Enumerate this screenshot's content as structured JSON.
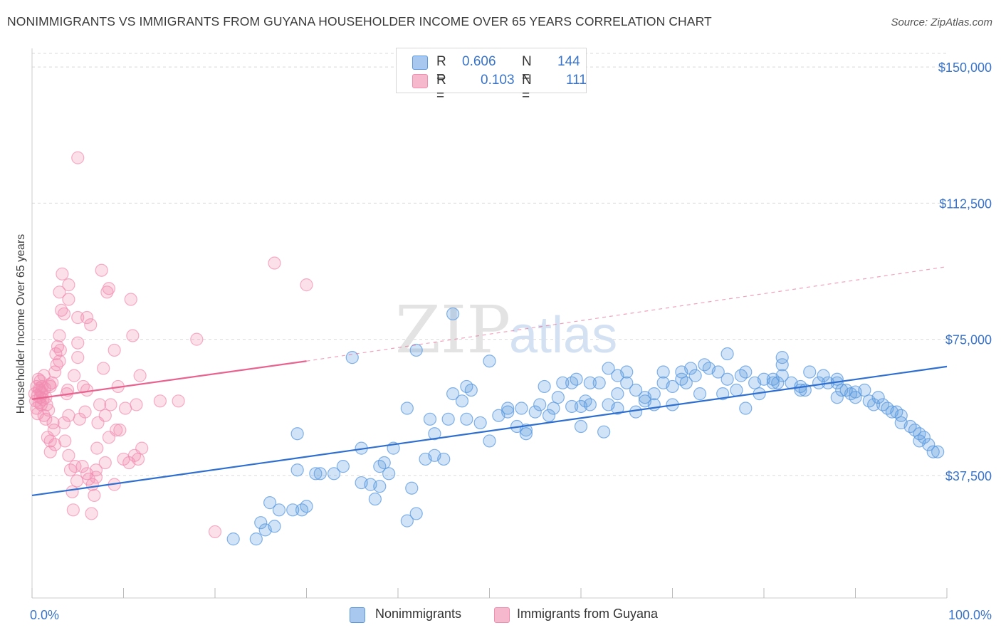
{
  "title": "NONIMMIGRANTS VS IMMIGRANTS FROM GUYANA HOUSEHOLDER INCOME OVER 65 YEARS CORRELATION CHART",
  "source": "Source: ZipAtlas.com",
  "watermark": {
    "zip": "ZIP",
    "atlas": "atlas"
  },
  "legend": {
    "row1": {
      "r_label": "R =",
      "r_value": "0.606",
      "n_label": "N =",
      "n_value": "144",
      "color": "#a9c8ef"
    },
    "row2": {
      "r_label": "R =",
      "r_value": "0.103",
      "n_label": "N =",
      "n_value": "111",
      "color": "#f5b8cc"
    }
  },
  "bottom_legend": {
    "item1": "Nonimmigrants",
    "item2": "Immigrants from Guyana"
  },
  "chart_data": {
    "type": "scatter",
    "title": "NONIMMIGRANTS VS IMMIGRANTS FROM GUYANA HOUSEHOLDER INCOME OVER 65 YEARS CORRELATION CHART",
    "xlabel": "",
    "ylabel": "Householder Income Over 65 years",
    "xlim": [
      0,
      100
    ],
    "ylim": [
      3750,
      153750
    ],
    "x_tick_labels": [
      "0.0%",
      "100.0%"
    ],
    "y_ticks": [
      37500,
      75000,
      112500,
      150000
    ],
    "y_tick_labels": [
      "$37,500",
      "$75,000",
      "$112,500",
      "$150,000"
    ],
    "grid": true,
    "series": [
      {
        "name": "Nonimmigrants",
        "color": "#5b9ae0",
        "trend": {
          "x": [
            0,
            100
          ],
          "y": [
            32000,
            67500
          ],
          "style": "solid",
          "color": "#2f6fd0"
        },
        "points": [
          [
            22,
            20000
          ],
          [
            24.5,
            20000
          ],
          [
            25.5,
            22500
          ],
          [
            26.5,
            23500
          ],
          [
            25,
            24500
          ],
          [
            26,
            30000
          ],
          [
            27,
            28000
          ],
          [
            28.5,
            28000
          ],
          [
            29,
            39000
          ],
          [
            29.5,
            28000
          ],
          [
            30,
            29000
          ],
          [
            29,
            49000
          ],
          [
            31,
            38000
          ],
          [
            31.5,
            38000
          ],
          [
            33,
            38000
          ],
          [
            34,
            40000
          ],
          [
            35,
            70000
          ],
          [
            36,
            45000
          ],
          [
            36,
            35500
          ],
          [
            37,
            35000
          ],
          [
            37.5,
            31000
          ],
          [
            38,
            34500
          ],
          [
            38,
            40000
          ],
          [
            38.5,
            41000
          ],
          [
            39,
            38000
          ],
          [
            39.5,
            45000
          ],
          [
            41,
            25000
          ],
          [
            41,
            56000
          ],
          [
            41.5,
            34000
          ],
          [
            42,
            27000
          ],
          [
            42,
            72000
          ],
          [
            43,
            42000
          ],
          [
            43.5,
            53000
          ],
          [
            44,
            49000
          ],
          [
            44,
            43000
          ],
          [
            45,
            42000
          ],
          [
            45.5,
            53000
          ],
          [
            46,
            60000
          ],
          [
            47,
            58000
          ],
          [
            47.5,
            62000
          ],
          [
            47.5,
            53000
          ],
          [
            48,
            61000
          ],
          [
            49,
            52000
          ],
          [
            50,
            69000
          ],
          [
            50,
            47000
          ],
          [
            51,
            54000
          ],
          [
            52,
            55000
          ],
          [
            52,
            56000
          ],
          [
            53,
            51000
          ],
          [
            53.5,
            56000
          ],
          [
            54,
            49000
          ],
          [
            54,
            50000
          ],
          [
            55,
            55000
          ],
          [
            55.5,
            57000
          ],
          [
            56,
            62000
          ],
          [
            56.5,
            54000
          ],
          [
            57,
            56000
          ],
          [
            57.5,
            59000
          ],
          [
            58,
            63000
          ],
          [
            59,
            56500
          ],
          [
            59,
            63000
          ],
          [
            59.5,
            64000
          ],
          [
            60,
            51000
          ],
          [
            60,
            56500
          ],
          [
            60.5,
            58000
          ],
          [
            61,
            57000
          ],
          [
            61,
            63000
          ],
          [
            62,
            63000
          ],
          [
            62.5,
            49500
          ],
          [
            63,
            57000
          ],
          [
            63,
            67000
          ],
          [
            64,
            56000
          ],
          [
            64,
            60000
          ],
          [
            64,
            65000
          ],
          [
            65,
            63000
          ],
          [
            65,
            66000
          ],
          [
            66,
            55000
          ],
          [
            66,
            61000
          ],
          [
            67,
            59000
          ],
          [
            67,
            58000
          ],
          [
            68,
            60000
          ],
          [
            68,
            57000
          ],
          [
            69,
            63000
          ],
          [
            69,
            66000
          ],
          [
            70,
            62000
          ],
          [
            70,
            57000
          ],
          [
            71,
            64000
          ],
          [
            71,
            66000
          ],
          [
            71.5,
            63000
          ],
          [
            72,
            67000
          ],
          [
            72.5,
            65000
          ],
          [
            73,
            60000
          ],
          [
            73.5,
            68000
          ],
          [
            74,
            67000
          ],
          [
            75,
            66000
          ],
          [
            75.5,
            60000
          ],
          [
            76,
            71000
          ],
          [
            76,
            64000
          ],
          [
            77,
            61000
          ],
          [
            77.5,
            65000
          ],
          [
            78,
            56000
          ],
          [
            78,
            66000
          ],
          [
            79,
            63000
          ],
          [
            79.5,
            60000
          ],
          [
            80,
            64000
          ],
          [
            81,
            63000
          ],
          [
            81,
            64000
          ],
          [
            81.5,
            63000
          ],
          [
            82,
            65000
          ],
          [
            82,
            68000
          ],
          [
            82,
            70000
          ],
          [
            83,
            63000
          ],
          [
            84,
            62000
          ],
          [
            84,
            61000
          ],
          [
            84.5,
            61000
          ],
          [
            85,
            66000
          ],
          [
            86,
            63000
          ],
          [
            86.5,
            65000
          ],
          [
            87,
            63000
          ],
          [
            88,
            64000
          ],
          [
            88,
            63000
          ],
          [
            88,
            59000
          ],
          [
            88.5,
            61000
          ],
          [
            89,
            61000
          ],
          [
            89.5,
            60000
          ],
          [
            90,
            60500
          ],
          [
            90,
            59000
          ],
          [
            91,
            61000
          ],
          [
            91.5,
            58000
          ],
          [
            92,
            57000
          ],
          [
            92.5,
            59000
          ],
          [
            93,
            57000
          ],
          [
            93.5,
            56000
          ],
          [
            94,
            55000
          ],
          [
            94.5,
            55000
          ],
          [
            95,
            54000
          ],
          [
            95,
            52000
          ],
          [
            96,
            51000
          ],
          [
            96.5,
            50000
          ],
          [
            97,
            49000
          ],
          [
            97.5,
            48000
          ],
          [
            98,
            46000
          ],
          [
            98.5,
            44000
          ],
          [
            99,
            44000
          ],
          [
            46,
            82000
          ],
          [
            97,
            47000
          ]
        ]
      },
      {
        "name": "Immigrants from Guyana",
        "color": "#f28db0",
        "trend": {
          "x": [
            0,
            30
          ],
          "y": [
            58500,
            69000
          ],
          "style": "solid",
          "color": "#e8638f",
          "extended_x": [
            30,
            100
          ],
          "extended_y": [
            69000,
            95000
          ],
          "extended_style": "dashed"
        },
        "points": [
          [
            0.3,
            60000
          ],
          [
            0.4,
            58000
          ],
          [
            0.5,
            62000
          ],
          [
            0.5,
            56000
          ],
          [
            0.6,
            59500
          ],
          [
            0.7,
            64000
          ],
          [
            0.8,
            57500
          ],
          [
            0.8,
            61000
          ],
          [
            0.9,
            59000
          ],
          [
            1,
            60500
          ],
          [
            1,
            57000
          ],
          [
            1.1,
            62000
          ],
          [
            1.2,
            58500
          ],
          [
            1.3,
            54000
          ],
          [
            1.4,
            61500
          ],
          [
            1.5,
            59000
          ],
          [
            1.5,
            53000
          ],
          [
            1.6,
            57000
          ],
          [
            1.7,
            48000
          ],
          [
            1.8,
            55500
          ],
          [
            2,
            62000
          ],
          [
            2,
            47000
          ],
          [
            2,
            44000
          ],
          [
            2.2,
            63000
          ],
          [
            2.3,
            52000
          ],
          [
            2.5,
            46000
          ],
          [
            2.5,
            66000
          ],
          [
            2.6,
            71000
          ],
          [
            2.8,
            73000
          ],
          [
            3,
            69000
          ],
          [
            3,
            88000
          ],
          [
            3,
            76000
          ],
          [
            3.2,
            83000
          ],
          [
            3.3,
            93000
          ],
          [
            3.5,
            82000
          ],
          [
            3.5,
            52000
          ],
          [
            3.6,
            47000
          ],
          [
            3.8,
            60000
          ],
          [
            4,
            86000
          ],
          [
            4,
            90000
          ],
          [
            4,
            54000
          ],
          [
            4,
            43000
          ],
          [
            4.2,
            39000
          ],
          [
            4.4,
            33000
          ],
          [
            4.5,
            28000
          ],
          [
            4.6,
            65000
          ],
          [
            4.7,
            40000
          ],
          [
            5,
            81000
          ],
          [
            5,
            74000
          ],
          [
            5,
            70000
          ],
          [
            5.2,
            53000
          ],
          [
            5.5,
            40000
          ],
          [
            5.6,
            62000
          ],
          [
            5.8,
            55000
          ],
          [
            6,
            81000
          ],
          [
            6,
            61000
          ],
          [
            6,
            38000
          ],
          [
            6.2,
            36500
          ],
          [
            6.4,
            79000
          ],
          [
            6.5,
            27000
          ],
          [
            6.6,
            35000
          ],
          [
            7,
            39000
          ],
          [
            7,
            37000
          ],
          [
            7.2,
            52000
          ],
          [
            7.4,
            57000
          ],
          [
            7.6,
            94000
          ],
          [
            7.8,
            67000
          ],
          [
            8,
            54000
          ],
          [
            8,
            41000
          ],
          [
            8.2,
            88000
          ],
          [
            8.4,
            48000
          ],
          [
            8.4,
            89000
          ],
          [
            8.6,
            57000
          ],
          [
            9,
            72000
          ],
          [
            9,
            35000
          ],
          [
            9.2,
            50000
          ],
          [
            9.6,
            50000
          ],
          [
            10,
            42000
          ],
          [
            10.2,
            56000
          ],
          [
            10.6,
            41000
          ],
          [
            10.8,
            86000
          ],
          [
            11,
            76000
          ],
          [
            11.2,
            43000
          ],
          [
            11.4,
            57000
          ],
          [
            11.6,
            42000
          ],
          [
            11.8,
            65000
          ],
          [
            12,
            45000
          ],
          [
            5,
            125000
          ],
          [
            14,
            58000
          ],
          [
            16,
            58000
          ],
          [
            18,
            75000
          ],
          [
            20,
            22000
          ],
          [
            26.5,
            96000
          ],
          [
            30,
            90000
          ],
          [
            2.4,
            50000
          ],
          [
            3.1,
            72000
          ],
          [
            1.9,
            62500
          ],
          [
            0.9,
            63500
          ],
          [
            1.3,
            65000
          ],
          [
            6.8,
            32000
          ],
          [
            0.6,
            54500
          ],
          [
            2.7,
            68000
          ],
          [
            3.9,
            61000
          ],
          [
            4.9,
            36000
          ],
          [
            7.1,
            45000
          ],
          [
            9.4,
            62000
          ],
          [
            1.1,
            60000
          ],
          [
            0.8,
            61500
          ]
        ]
      }
    ]
  }
}
